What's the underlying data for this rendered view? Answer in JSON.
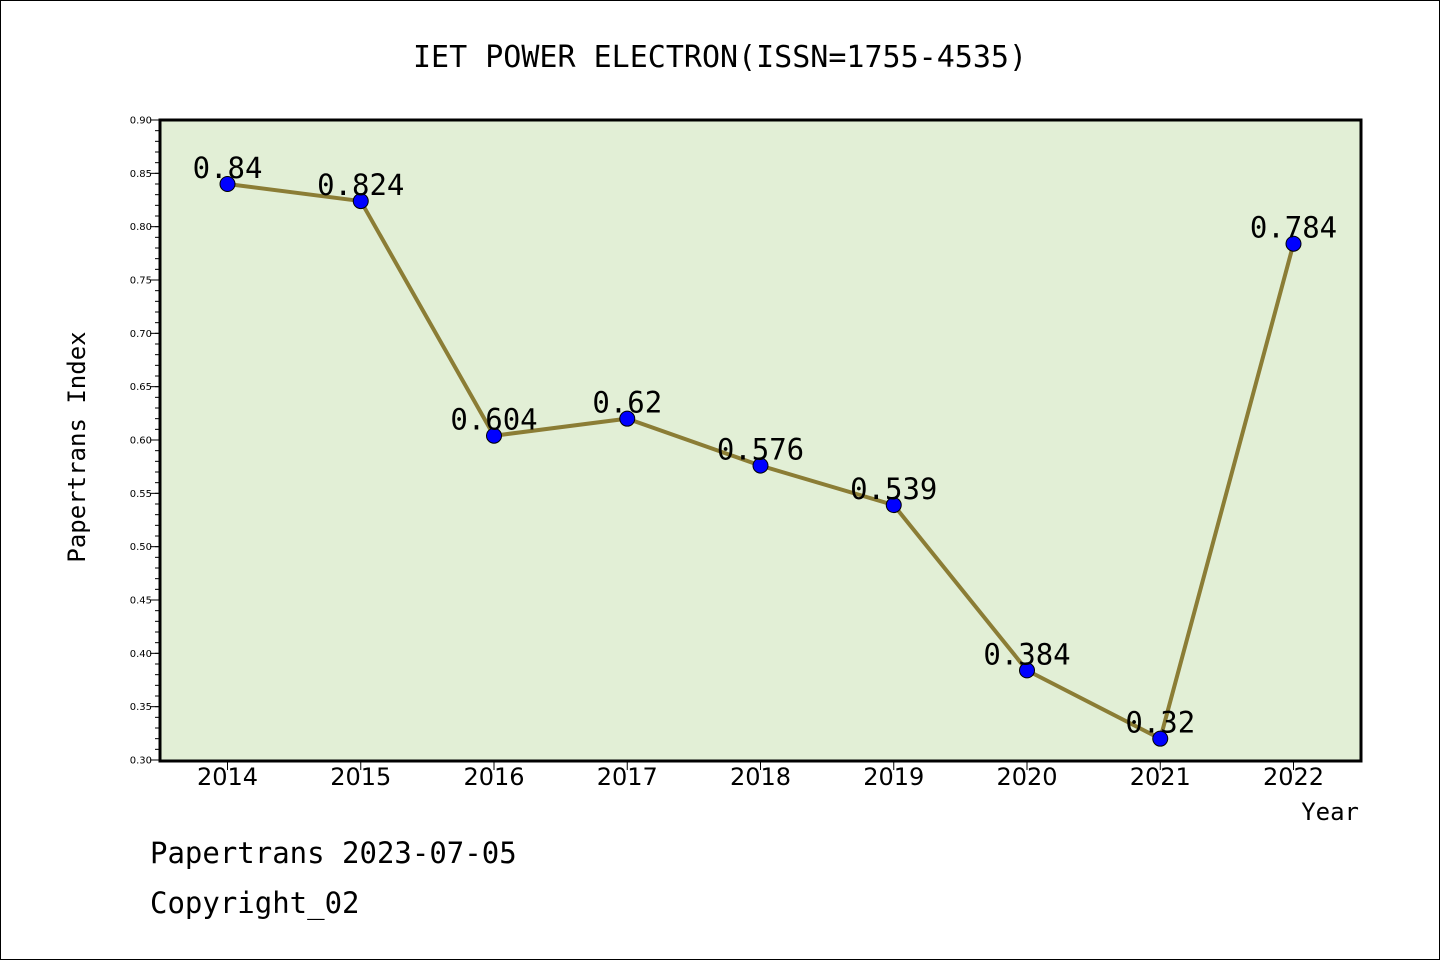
{
  "chart_data": {
    "type": "line",
    "title": "IET POWER ELECTRON(ISSN=1755-4535)",
    "xlabel": "Year",
    "ylabel": "Papertrans Index",
    "categories": [
      "2014",
      "2015",
      "2016",
      "2017",
      "2018",
      "2019",
      "2020",
      "2021",
      "2022"
    ],
    "series": [
      {
        "values": [
          0.84,
          0.824,
          0.604,
          0.62,
          0.576,
          0.539,
          0.384,
          0.32,
          0.784
        ],
        "labels": [
          "0.84",
          "0.824",
          "0.604",
          "0.62",
          "0.576",
          "0.539",
          "0.384",
          "0.32",
          "0.784"
        ]
      }
    ],
    "ylim": [
      0.3,
      0.9
    ],
    "yticks": [
      "0.30",
      "0.35",
      "0.40",
      "0.45",
      "0.50",
      "0.55",
      "0.60",
      "0.65",
      "0.70",
      "0.75",
      "0.80",
      "0.85",
      "0.90"
    ],
    "grid": false,
    "legend": "none",
    "colors": {
      "plot_background": "#e2efd6",
      "line": "#8b7d35",
      "marker": "#0000ff"
    }
  },
  "footer": {
    "source": "Papertrans 2023-07-05",
    "copyright": "Copyright_02"
  }
}
